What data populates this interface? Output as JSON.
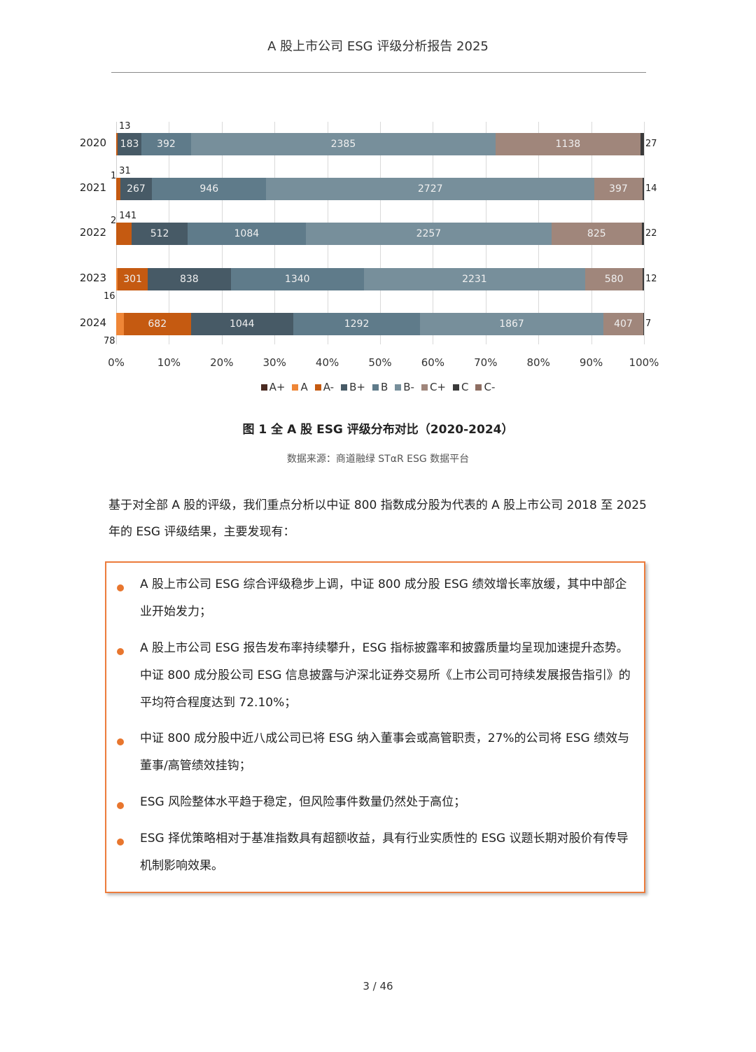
{
  "header": {
    "title": "A 股上市公司 ESG 评级分析报告 2025"
  },
  "chart_data": {
    "type": "bar",
    "orientation": "horizontal",
    "stacked": "percent",
    "title": "图 1 全 A 股 ESG 评级分布对比（2020-2024）",
    "source": "数据来源：商道融绿 STαR ESG 数据平台",
    "categories": [
      "2020",
      "2021",
      "2022",
      "2023",
      "2024"
    ],
    "xlabel": "",
    "ylabel": "",
    "xlim": [
      0,
      100
    ],
    "xticks": [
      "0%",
      "10%",
      "20%",
      "30%",
      "40%",
      "50%",
      "60%",
      "70%",
      "80%",
      "90%",
      "100%"
    ],
    "grid": true,
    "legend_position": "bottom",
    "series": [
      {
        "name": "A+",
        "color": "#4a2a22",
        "values": [
          0,
          0,
          0,
          0,
          0
        ]
      },
      {
        "name": "A",
        "color": "#ef8637",
        "values": [
          0,
          1,
          2,
          16,
          78
        ]
      },
      {
        "name": "A-",
        "color": "#c55a11",
        "values": [
          13,
          31,
          141,
          301,
          682
        ]
      },
      {
        "name": "B+",
        "color": "#475a66",
        "values": [
          183,
          267,
          512,
          838,
          1044
        ]
      },
      {
        "name": "B",
        "color": "#5f7b8a",
        "values": [
          392,
          946,
          1084,
          1340,
          1292
        ]
      },
      {
        "name": "B-",
        "color": "#778f9b",
        "values": [
          2385,
          2727,
          2257,
          2231,
          1867
        ]
      },
      {
        "name": "C+",
        "color": "#a0867b",
        "values": [
          1138,
          397,
          825,
          580,
          407
        ]
      },
      {
        "name": "C",
        "color": "#3a3a3a",
        "values": [
          27,
          14,
          22,
          12,
          7
        ]
      },
      {
        "name": "C-",
        "color": "#8e6e62",
        "values": [
          0,
          0,
          0,
          0,
          0
        ]
      }
    ]
  },
  "chart_labels": {
    "years": [
      "2020",
      "2021",
      "2022",
      "2023",
      "2024"
    ],
    "xticks": [
      "0%",
      "10%",
      "20%",
      "30%",
      "40%",
      "50%",
      "60%",
      "70%",
      "80%",
      "90%",
      "100%"
    ],
    "legend": [
      "A+",
      "A",
      "A-",
      "B+",
      "B",
      "B-",
      "C+",
      "C",
      "C-"
    ]
  },
  "figure": {
    "caption": "图 1 全 A 股 ESG 评级分布对比（2020-2024）",
    "source": "数据来源：商道融绿 STαR ESG 数据平台"
  },
  "intro": {
    "text": "基于对全部 A 股的评级，我们重点分析以中证 800 指数成分股为代表的 A 股上市公司 2018 至 2025 年的 ESG 评级结果，主要发现有："
  },
  "findings": [
    {
      "text": "A 股上市公司 ESG 综合评级稳步上调，中证 800 成分股 ESG 绩效增长率放缓，其中中部企业开始发力；"
    },
    {
      "text": "A 股上市公司 ESG 报告发布率持续攀升，ESG 指标披露率和披露质量均呈现加速提升态势。中证 800 成分股公司 ESG 信息披露与沪深北证券交易所《上市公司可持续发展报告指引》的平均符合程度达到 72.10%；"
    },
    {
      "text": "中证 800 成分股中近八成公司已将 ESG 纳入董事会或高管职责，27%的公司将 ESG 绩效与董事/高管绩效挂钩；"
    },
    {
      "text": "ESG 风险整体水平趋于稳定，但风险事件数量仍然处于高位；"
    },
    {
      "text": "ESG 择优策略相对于基准指数具有超额收益，具有行业实质性的 ESG 议题长期对股价有传导机制影响效果。"
    }
  ],
  "footer": {
    "page": "3 / 46"
  },
  "colors": {
    "accent_orange": "#ec7c3c",
    "bullet_orange": "#e8762e"
  }
}
